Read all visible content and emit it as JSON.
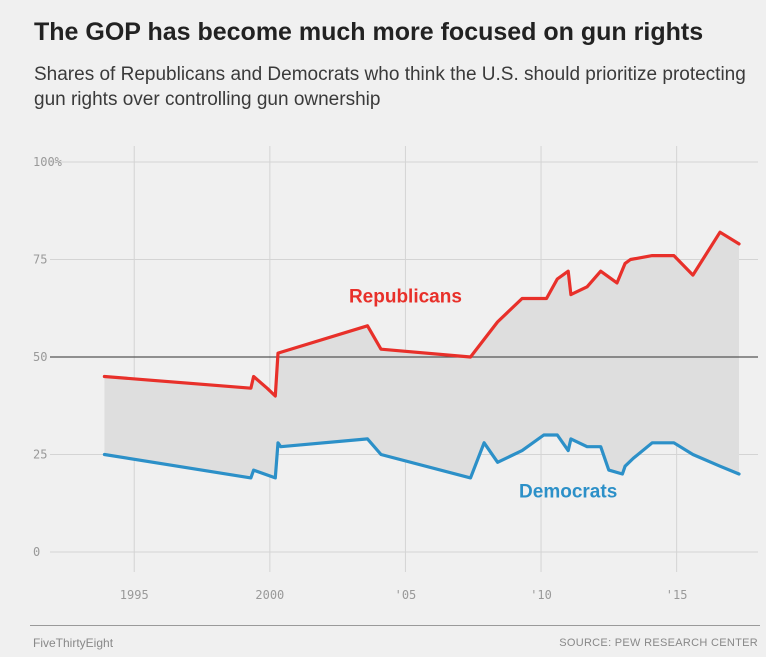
{
  "header": {
    "title": "The GOP has become much more focused on gun rights",
    "subtitle": "Shares of Republicans and Democrats who think the U.S. should prioritize protecting gun rights over controlling gun ownership"
  },
  "footer": {
    "brand": "FiveThirtyEight",
    "source": "SOURCE: PEW RESEARCH CENTER"
  },
  "colors": {
    "republicans": "#e8302a",
    "democrats": "#2c90c8",
    "fill": "#dedede",
    "grid": "#d4d4d4",
    "baseline50": "#555555"
  },
  "chart_data": {
    "type": "line",
    "xlim": [
      1993.0,
      2018.0
    ],
    "ylim": [
      0,
      100
    ],
    "x_ticks": [
      1995,
      2000,
      2005,
      2010,
      2015
    ],
    "x_tick_labels": [
      "1995",
      "2000",
      "'05",
      "'10",
      "'15"
    ],
    "y_ticks": [
      0,
      25,
      50,
      75,
      100
    ],
    "y_tick_labels": [
      "0",
      "25",
      "50",
      "75",
      "100%"
    ],
    "reference_line": 50,
    "grid": true,
    "shaded_between_series": true,
    "series": [
      {
        "name": "Republicans",
        "color": "#e8302a",
        "label_at": [
          2005.0,
          64
        ],
        "points": [
          [
            1993.9,
            45
          ],
          [
            1999.3,
            42
          ],
          [
            1999.4,
            45
          ],
          [
            1999.9,
            42
          ],
          [
            2000.2,
            40
          ],
          [
            2000.3,
            51
          ],
          [
            2003.6,
            58
          ],
          [
            2004.1,
            52
          ],
          [
            2007.4,
            50
          ],
          [
            2008.4,
            59
          ],
          [
            2009.3,
            65
          ],
          [
            2010.2,
            65
          ],
          [
            2010.6,
            70
          ],
          [
            2011.0,
            72
          ],
          [
            2011.1,
            66
          ],
          [
            2011.7,
            68
          ],
          [
            2012.2,
            72
          ],
          [
            2012.8,
            69
          ],
          [
            2013.1,
            74
          ],
          [
            2013.3,
            75
          ],
          [
            2014.1,
            76
          ],
          [
            2014.9,
            76
          ],
          [
            2015.6,
            71
          ],
          [
            2016.6,
            82
          ],
          [
            2017.3,
            79
          ]
        ]
      },
      {
        "name": "Democrats",
        "color": "#2c90c8",
        "label_at": [
          2011.0,
          14
        ],
        "points": [
          [
            1993.9,
            25
          ],
          [
            1999.3,
            19
          ],
          [
            1999.4,
            21
          ],
          [
            2000.2,
            19
          ],
          [
            2000.3,
            28
          ],
          [
            2000.4,
            27
          ],
          [
            2003.6,
            29
          ],
          [
            2004.1,
            25
          ],
          [
            2007.4,
            19
          ],
          [
            2007.9,
            28
          ],
          [
            2008.4,
            23
          ],
          [
            2009.3,
            26
          ],
          [
            2010.1,
            30
          ],
          [
            2010.6,
            30
          ],
          [
            2011.0,
            26
          ],
          [
            2011.1,
            29
          ],
          [
            2011.7,
            27
          ],
          [
            2012.2,
            27
          ],
          [
            2012.5,
            21
          ],
          [
            2013.0,
            20
          ],
          [
            2013.1,
            22
          ],
          [
            2013.4,
            24
          ],
          [
            2014.1,
            28
          ],
          [
            2014.9,
            28
          ],
          [
            2015.6,
            25
          ],
          [
            2016.6,
            22
          ],
          [
            2017.3,
            20
          ]
        ]
      }
    ]
  }
}
